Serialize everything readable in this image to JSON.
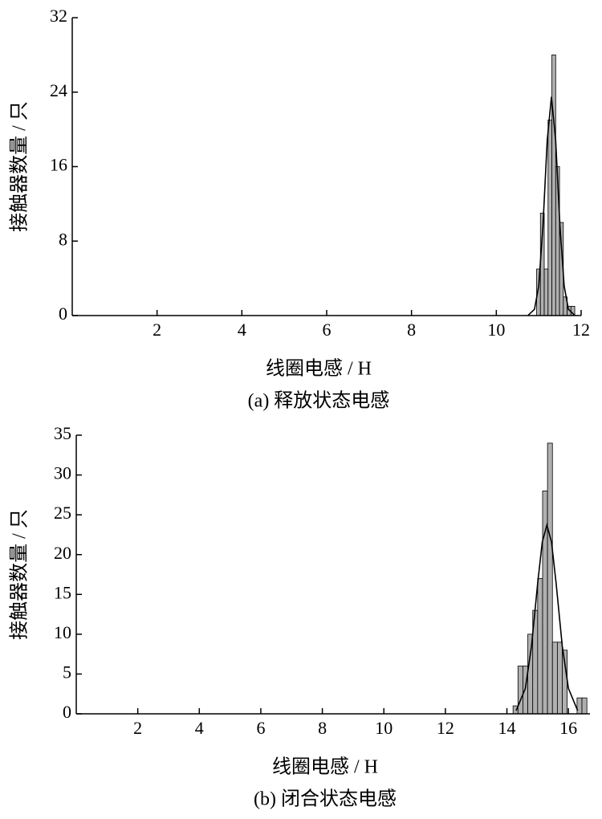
{
  "chart_data": [
    {
      "type": "histogram",
      "xlabel": "线圈电感 / H",
      "ylabel": "接触器数量 / 只",
      "caption": "(a)  释放状态电感",
      "bins": [
        10.95,
        11.04,
        11.13,
        11.22,
        11.31,
        11.4,
        11.49,
        11.58,
        11.67,
        11.76,
        11.85
      ],
      "values": [
        5,
        11,
        5,
        21,
        28,
        16,
        10,
        2,
        1,
        1
      ],
      "color": "#b0b0b0",
      "fit": {
        "x": [
          10.75,
          10.9,
          11.0,
          11.1,
          11.2,
          11.3,
          11.4,
          11.5,
          11.6,
          11.7,
          11.85
        ],
        "y": [
          0.03,
          0.67,
          3.18,
          9.66,
          18.8,
          23.5,
          18.8,
          9.66,
          3.18,
          0.67,
          0.03
        ],
        "color": "#000000"
      },
      "xlim": [
        0,
        12
      ],
      "ylim": [
        0,
        32
      ],
      "xticks": [
        2,
        4,
        6,
        8,
        10,
        12
      ],
      "yticks": [
        0,
        8,
        16,
        24,
        32
      ]
    },
    {
      "type": "histogram",
      "xlabel": "线圈电感 / H",
      "ylabel": "接触器数量 / 只",
      "caption": "(b)  闭合状态电感",
      "bins": [
        14.2,
        14.36,
        14.52,
        14.68,
        14.84,
        15.0,
        15.16,
        15.32,
        15.48,
        15.64,
        15.8,
        15.96,
        16.12,
        16.28,
        16.44,
        16.6
      ],
      "values": [
        1,
        6,
        6,
        10,
        13,
        17,
        28,
        34,
        9,
        9,
        8,
        0,
        0,
        2,
        2
      ],
      "color": "#b0b0b0",
      "fit": {
        "x": [
          14.3,
          14.6,
          14.8,
          15.0,
          15.15,
          15.3,
          15.45,
          15.6,
          15.8,
          16.0,
          16.3
        ],
        "y": [
          0.4,
          3.2,
          8.5,
          16.4,
          21.6,
          23.7,
          21.6,
          16.4,
          8.5,
          3.2,
          0.4
        ],
        "color": "#000000"
      },
      "xlim": [
        0,
        16.7
      ],
      "ylim": [
        0,
        35
      ],
      "xticks": [
        2,
        4,
        6,
        8,
        10,
        12,
        14,
        16
      ],
      "yticks": [
        0,
        5,
        10,
        15,
        20,
        25,
        30,
        35
      ]
    }
  ]
}
